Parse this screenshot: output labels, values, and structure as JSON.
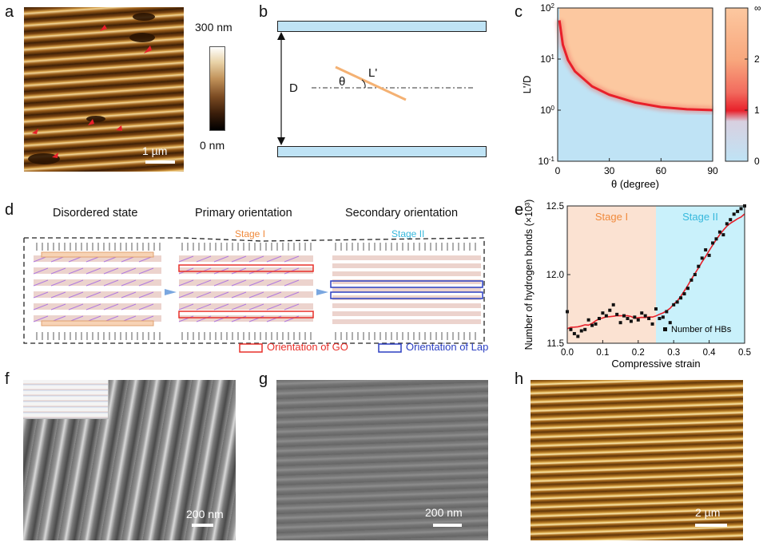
{
  "panels": {
    "a": {
      "label": "a",
      "scale_text": "1 µm",
      "colorbar_max": "300 nm",
      "colorbar_min": "0 nm"
    },
    "b": {
      "label": "b",
      "D": "D",
      "theta": "θ",
      "Lp": "L'"
    },
    "c": {
      "label": "c"
    },
    "d": {
      "label": "d",
      "state1": "Disordered state",
      "state2": "Primary orientation",
      "state3": "Secondary orientation",
      "stage1": "Stage I",
      "stage2": "Stage II",
      "legend_go": "Orientation of GO",
      "legend_lap": "Orientation of Lap"
    },
    "e": {
      "label": "e"
    },
    "f": {
      "label": "f",
      "scale_text": "200 nm"
    },
    "g": {
      "label": "g",
      "scale_text": "200 nm"
    },
    "h": {
      "label": "h",
      "scale_text": "2 µm"
    }
  },
  "colors": {
    "stage1_bg": "#fbe2d2",
    "stage2_bg": "#c9f1fb",
    "fit": "#e8202a",
    "go": "#e8302a",
    "lap": "#2b3fc2",
    "stage1_text": "#f08a3c",
    "stage2_text": "#36b8dc",
    "plate": "#bfe3f5",
    "peach": "#fcc8a0"
  },
  "chart_data": [
    {
      "type": "heatmap",
      "panel": "c",
      "xlabel": "θ (degree)",
      "ylabel": "L'/D",
      "x_ticks": [
        "0",
        "30",
        "60",
        "90"
      ],
      "y_ticks": [
        "10^-1",
        "10^0",
        "10^1",
        "10^2"
      ],
      "xlim": [
        0,
        90
      ],
      "ylim_log10": [
        -1,
        2
      ],
      "y_scale": "log",
      "colorbar_ticks": [
        "0",
        "1",
        "2",
        "∞"
      ],
      "boundary_curve": {
        "x": [
          1,
          3,
          6,
          10,
          20,
          30,
          45,
          60,
          75,
          90
        ],
        "y": [
          57.3,
          19.1,
          9.57,
          5.76,
          2.92,
          2.0,
          1.41,
          1.15,
          1.04,
          1.0
        ]
      }
    },
    {
      "type": "scatter",
      "panel": "e",
      "xlabel": "Compressive strain",
      "ylabel": "Number of hydrogen bonds (×10³)",
      "xlim": [
        0,
        0.5
      ],
      "ylim": [
        11.5,
        12.5
      ],
      "x_ticks": [
        "0.0",
        "0.1",
        "0.2",
        "0.3",
        "0.4",
        "0.5"
      ],
      "y_ticks": [
        "11.5",
        "12.0",
        "12.5"
      ],
      "regions": [
        {
          "label": "Stage I",
          "x": [
            0,
            0.25
          ]
        },
        {
          "label": "Stage II",
          "x": [
            0.25,
            0.5
          ]
        }
      ],
      "series": [
        {
          "name": "Number of HBs",
          "type": "scatter",
          "x": [
            0.0,
            0.01,
            0.02,
            0.03,
            0.04,
            0.05,
            0.06,
            0.07,
            0.08,
            0.09,
            0.1,
            0.11,
            0.12,
            0.13,
            0.14,
            0.15,
            0.16,
            0.17,
            0.18,
            0.19,
            0.2,
            0.21,
            0.22,
            0.23,
            0.24,
            0.25,
            0.26,
            0.27,
            0.28,
            0.29,
            0.3,
            0.31,
            0.32,
            0.33,
            0.34,
            0.35,
            0.36,
            0.37,
            0.38,
            0.39,
            0.4,
            0.41,
            0.42,
            0.43,
            0.44,
            0.45,
            0.46,
            0.47,
            0.48,
            0.49,
            0.5
          ],
          "y": [
            11.73,
            11.6,
            11.57,
            11.55,
            11.59,
            11.6,
            11.67,
            11.63,
            11.64,
            11.68,
            11.72,
            11.7,
            11.74,
            11.78,
            11.71,
            11.65,
            11.7,
            11.68,
            11.66,
            11.69,
            11.67,
            11.72,
            11.7,
            11.68,
            11.64,
            11.75,
            11.68,
            11.69,
            11.73,
            11.65,
            11.78,
            11.8,
            11.83,
            11.86,
            11.9,
            11.96,
            12.0,
            12.06,
            12.12,
            12.18,
            12.14,
            12.23,
            12.26,
            12.31,
            12.29,
            12.37,
            12.4,
            12.44,
            12.46,
            12.48,
            12.5
          ]
        }
      ]
    }
  ]
}
